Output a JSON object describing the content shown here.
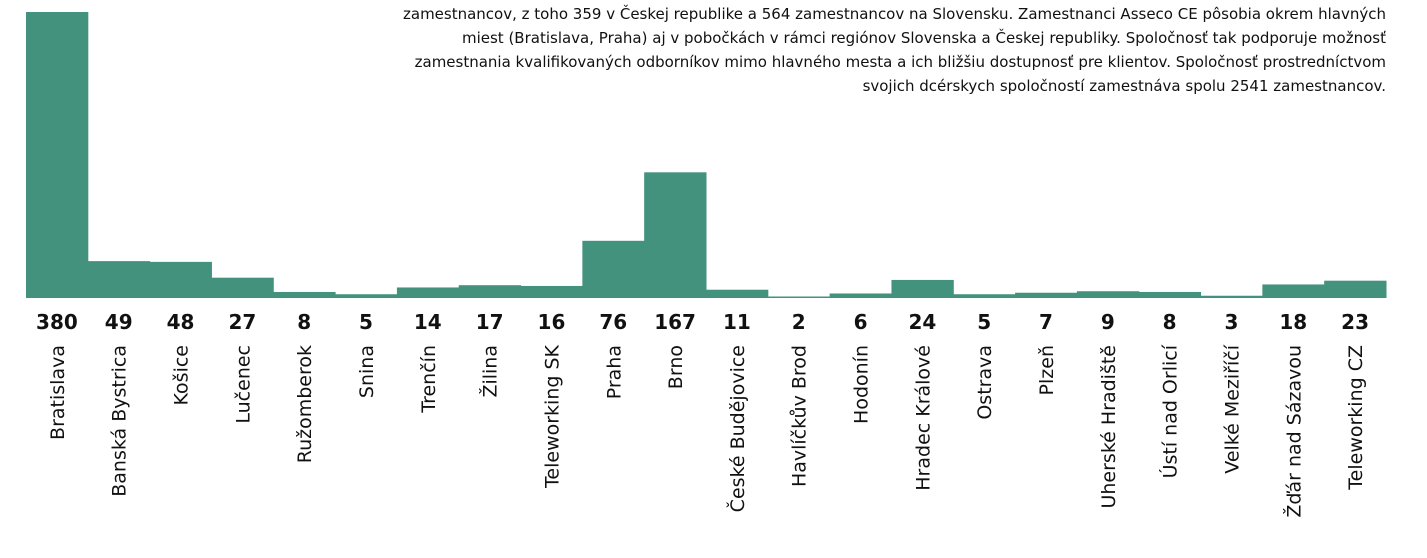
{
  "chart_data": {
    "type": "bar",
    "annotation": [
      "zamestnancov, z toho 359 v Českej republike a 564 zamestnancov na Slovensku. Zamestnanci Asseco CE pôsobia okrem hlavných",
      "miest (Bratislava, Praha) aj v pobočkách v rámci regiónov Slovenska a Českej republiky. Spoločnosť tak podporuje možnosť",
      "zamestnania kvalifikovaných odborníkov mimo hlavného mesta a ich bližšiu dostupnosť pre klientov. Spoločnosť prostredníctvom",
      "svojich dcérskych spoločností zamestnáva spolu 2541 zamestnancov."
    ],
    "categories": [
      "Bratislava",
      "Banská Bystrica",
      "Košice",
      "Lučenec",
      "Ružomberok",
      "Snina",
      "Trenčín",
      "Žilina",
      "Teleworking SK",
      "Praha",
      "Brno",
      "České Budějovice",
      "Havlíčkův Brod",
      "Hodonín",
      "Hradec Králové",
      "Ostrava",
      "Plzeň",
      "Uherské Hradiště",
      "Ústí nad Orlicí",
      "Velké Meziříčí",
      "Žďár nad Sázavou",
      "Teleworking CZ"
    ],
    "values": [
      380,
      49,
      48,
      27,
      8,
      5,
      14,
      17,
      16,
      76,
      167,
      11,
      2,
      6,
      24,
      5,
      7,
      9,
      8,
      3,
      18,
      23
    ],
    "color": "#43927e",
    "ylim": [
      0,
      380
    ]
  }
}
